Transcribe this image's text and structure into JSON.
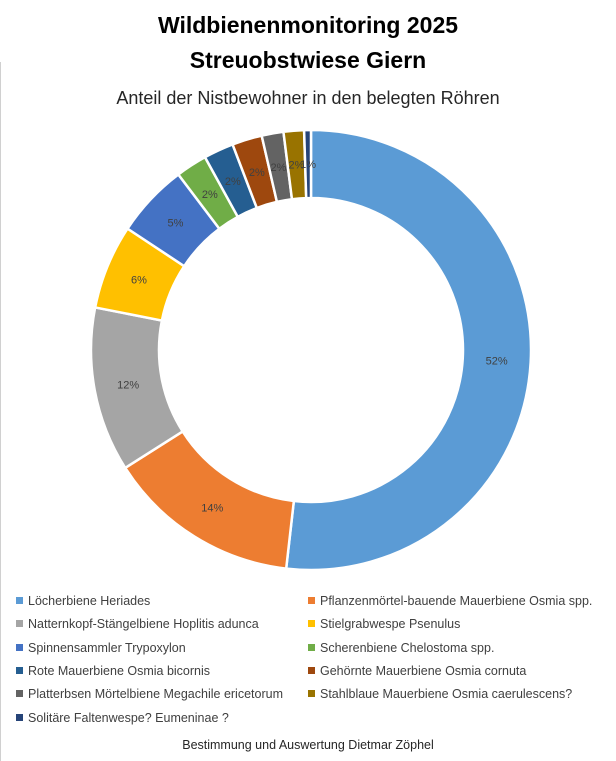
{
  "chart_data": {
    "type": "pie",
    "variant": "donut",
    "title": "Wildbienenmonitoring 2025",
    "title_line2": "Streuobstwiese Giern",
    "subtitle": "Anteil der Nistbewohner in den belegten Röhren",
    "footer": "Bestimmung und Auswertung Dietmar Zöphel",
    "legend_position": "bottom",
    "start_angle": "top, clockwise",
    "slices": [
      {
        "label": "Löcherbiene Heriades",
        "value": 51.8,
        "display": "52%",
        "color": "#5B9BD5"
      },
      {
        "label": "Pflanzenmörtel-bauende Mauerbiene Osmia spp.",
        "value": 14.2,
        "display": "14%",
        "color": "#ED7D31"
      },
      {
        "label": "Natternkopf-Stängelbiene Hoplitis adunca",
        "value": 12.1,
        "display": "12%",
        "color": "#A5A5A5"
      },
      {
        "label": "Stielgrabwespe Psenulus",
        "value": 6.2,
        "display": "6%",
        "color": "#FFC000"
      },
      {
        "label": "Spinnensammler Trypoxylon",
        "value": 5.4,
        "display": "5%",
        "color": "#4472C4"
      },
      {
        "label": "Scherenbiene  Chelostoma spp.",
        "value": 2.3,
        "display": "2%",
        "color": "#70AD47"
      },
      {
        "label": "Rote Mauerbiene Osmia bicornis",
        "value": 2.2,
        "display": "2%",
        "color": "#255E91"
      },
      {
        "label": "Gehörnte Mauerbiene Osmia cornuta",
        "value": 2.2,
        "display": "2%",
        "color": "#9E480E"
      },
      {
        "label": "Platterbsen Mörtelbiene Megachile ericetorum",
        "value": 1.6,
        "display": "2%",
        "color": "#636363"
      },
      {
        "label": "Stahlblaue Mauerbiene Osmia caerulescens?",
        "value": 1.5,
        "display": "2%",
        "color": "#997300"
      },
      {
        "label": "Solitäre Faltenwespe? Eumeninae ?",
        "value": 0.5,
        "display": "1%",
        "color": "#264478"
      }
    ]
  }
}
